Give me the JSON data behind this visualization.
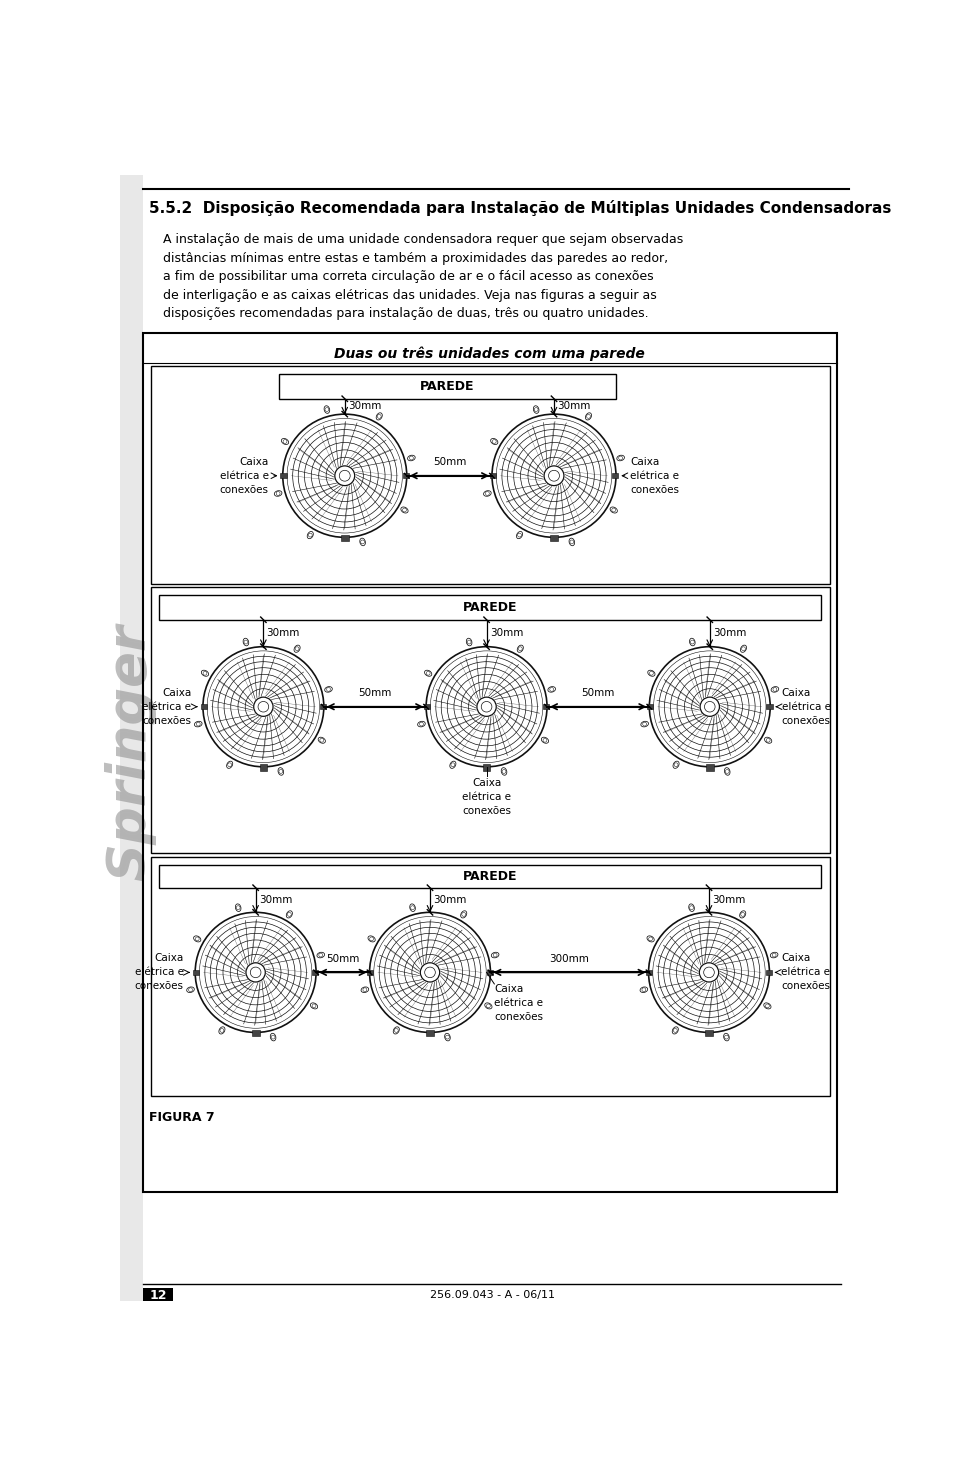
{
  "title": "5.5.2  Disposição Recomendada para Instalação de Múltiplas Unidades Condensadoras",
  "body_text": [
    "A instalação de mais de uma unidade condensadora requer que sejam observadas",
    "distâncias mínimas entre estas e também a proximidades das paredes ao redor,",
    "a fim de possibilitar uma correta circulação de ar e o fácil acesso as conexões",
    "de interligação e as caixas elétricas das unidades. Veja nas figuras a seguir as",
    "disposições recomendadas para instalação de duas, três ou quatro unidades."
  ],
  "section_title": "Duas ou três unidades com uma parede",
  "parede_label": "PAREDE",
  "caixa_label": "Caixa\nelétrica e\nconexões",
  "figura_label": "FIGURA 7",
  "page_number": "12",
  "footer_text": "256.09.043 - A - 06/11",
  "bg_color": "#ffffff"
}
